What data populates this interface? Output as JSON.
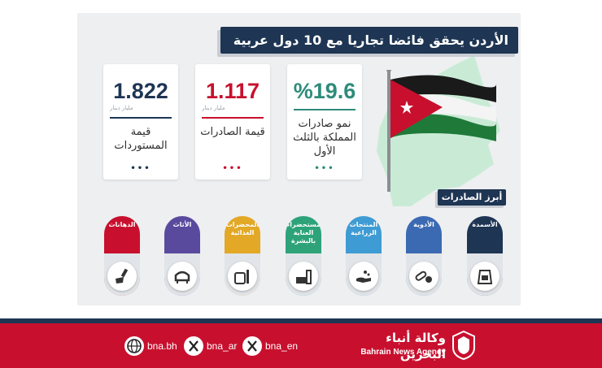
{
  "title": "الأردن يحقق فائضا تجاريا مع 10 دول عربية",
  "cards": [
    {
      "value": "%19.6",
      "unit": "",
      "label": "نمو صادرات المملكة بالثلث الأول",
      "accent": "#2e8b7a"
    },
    {
      "value": "1.117",
      "unit": "مليار دينار",
      "label": "قيمة الصادرات",
      "accent": "#c8102e"
    },
    {
      "value": "1.822",
      "unit": "مليار دينار",
      "label": "قيمة المستوردات",
      "accent": "#1e3553"
    }
  ],
  "exports_heading": "أبرز الصادرات",
  "exports": [
    {
      "label": "الأسمدة",
      "icon": "fertilizer-bag-icon",
      "color": "#1e3553"
    },
    {
      "label": "الأدوية",
      "icon": "medicine-icon",
      "color": "#3b6ab3"
    },
    {
      "label": "المنتجات الزراعية",
      "icon": "seed-hand-icon",
      "color": "#3f9bd3"
    },
    {
      "label": "مستحضرات العناية بالبشرة",
      "icon": "skincare-icon",
      "color": "#2ea37a"
    },
    {
      "label": "المحضرات الغذائية",
      "icon": "food-jar-icon",
      "color": "#e2a826"
    },
    {
      "label": "الأثاث",
      "icon": "armchair-icon",
      "color": "#5a4a9e"
    },
    {
      "label": "الدهانات",
      "icon": "paint-brush-icon",
      "color": "#c8102e"
    }
  ],
  "footer": {
    "social": [
      "bna_en",
      "bna_ar",
      "bna.bh"
    ],
    "brand_ar": "وكالة أنباء البحرين",
    "brand_en": "Bahrain News Agency"
  },
  "colors": {
    "navy": "#1e3553",
    "red": "#c8102e",
    "map_green": "#c9ebd6"
  }
}
